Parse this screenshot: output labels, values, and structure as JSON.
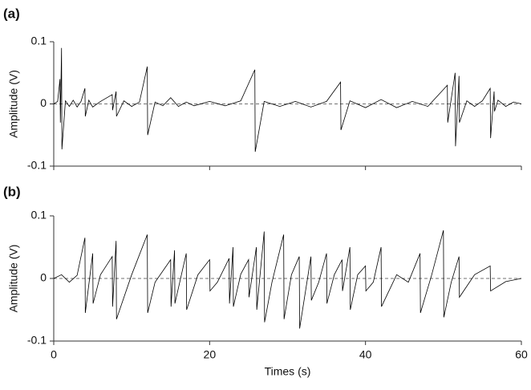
{
  "chart_data": [
    {
      "type": "line",
      "panel_label": "(a)",
      "ylabel": "Amplitude (V)",
      "xlim": [
        0,
        60
      ],
      "ylim": [
        -0.1,
        0.1
      ],
      "yticks": [
        -0.1,
        0,
        0.1
      ],
      "series": [
        {
          "color": "#000000",
          "x": [
            0,
            0.5,
            0.8,
            0.85,
            1.0,
            1.05,
            1.5,
            2,
            2.5,
            3,
            3.5,
            4,
            4.05,
            4.5,
            5,
            6,
            7.5,
            7.55,
            8,
            8.05,
            9,
            10,
            11,
            12,
            12.05,
            13,
            14,
            15,
            16,
            17,
            18,
            20,
            22,
            24,
            25.8,
            25.85,
            27,
            29,
            31,
            33,
            35,
            36.8,
            36.85,
            38,
            40,
            42,
            44,
            46,
            48,
            50.5,
            50.55,
            51.5,
            51.55,
            52,
            52.05,
            53,
            54,
            55,
            56,
            56.05,
            56.5,
            56.55,
            57,
            58,
            59,
            60
          ],
          "values": [
            0,
            0.004,
            0.04,
            -0.03,
            0.09,
            -0.073,
            0.005,
            -0.004,
            0.006,
            -0.005,
            0.004,
            0.025,
            -0.02,
            0.006,
            -0.005,
            0.004,
            0.015,
            -0.01,
            0.02,
            -0.02,
            0.005,
            -0.004,
            0.003,
            0.06,
            -0.05,
            0.003,
            -0.003,
            0.01,
            -0.004,
            0.003,
            -0.003,
            0.004,
            -0.003,
            0.005,
            0.055,
            -0.077,
            0.004,
            -0.004,
            0.004,
            -0.005,
            0.004,
            0.035,
            -0.042,
            0.005,
            -0.006,
            0.007,
            -0.006,
            0.004,
            -0.004,
            0.03,
            -0.03,
            0.05,
            -0.068,
            0.045,
            -0.03,
            0.005,
            -0.004,
            0.005,
            0.025,
            -0.055,
            0.02,
            -0.012,
            0.006,
            -0.004,
            0.003,
            0
          ]
        }
      ]
    },
    {
      "type": "line",
      "panel_label": "(b)",
      "ylabel": "Amplitude (V)",
      "xlabel": "Times (s)",
      "xlim": [
        0,
        60
      ],
      "xticks": [
        0,
        20,
        40,
        60
      ],
      "ylim": [
        -0.1,
        0.1
      ],
      "yticks": [
        -0.1,
        0,
        0.1
      ],
      "series": [
        {
          "color": "#000000",
          "x": [
            0,
            1,
            2,
            3,
            4,
            4.05,
            5,
            5.05,
            6,
            7.5,
            7.55,
            8,
            8.05,
            10,
            12,
            12.05,
            13,
            15,
            15.05,
            15.5,
            15.55,
            17,
            17.05,
            18.5,
            20,
            20.05,
            21,
            22.5,
            22.55,
            23,
            23.05,
            24,
            25,
            25.05,
            26,
            26.05,
            27,
            27.05,
            28,
            29.5,
            29.55,
            30.5,
            31.5,
            31.55,
            33,
            33.05,
            34,
            35,
            35.05,
            36,
            37,
            37.05,
            38,
            38.05,
            39,
            40,
            40.05,
            41,
            42,
            42.05,
            44,
            45.5,
            47,
            47.05,
            48.5,
            50,
            50.05,
            51,
            52,
            52.05,
            54,
            56,
            56.05,
            58,
            60
          ],
          "values": [
            0,
            0.006,
            -0.006,
            0.005,
            0.065,
            -0.055,
            0.04,
            -0.04,
            0.006,
            0.035,
            -0.045,
            0.06,
            -0.065,
            0.006,
            0.07,
            -0.055,
            -0.006,
            0.03,
            -0.045,
            0.045,
            -0.04,
            0.04,
            -0.05,
            0.006,
            0.03,
            -0.02,
            -0.006,
            0.032,
            -0.04,
            0.05,
            -0.045,
            0.007,
            0.03,
            -0.03,
            0.05,
            -0.05,
            0.075,
            -0.07,
            -0.006,
            0.07,
            -0.065,
            0.006,
            0.035,
            -0.08,
            0.035,
            -0.035,
            -0.006,
            0.04,
            -0.04,
            0.006,
            0.03,
            -0.02,
            0.05,
            -0.05,
            0.006,
            0.02,
            -0.02,
            -0.006,
            0.05,
            -0.045,
            0.006,
            -0.006,
            0.04,
            -0.055,
            0.006,
            0.077,
            -0.062,
            -0.006,
            0.035,
            -0.03,
            0.006,
            0.02,
            -0.02,
            -0.005,
            0
          ]
        }
      ]
    }
  ]
}
